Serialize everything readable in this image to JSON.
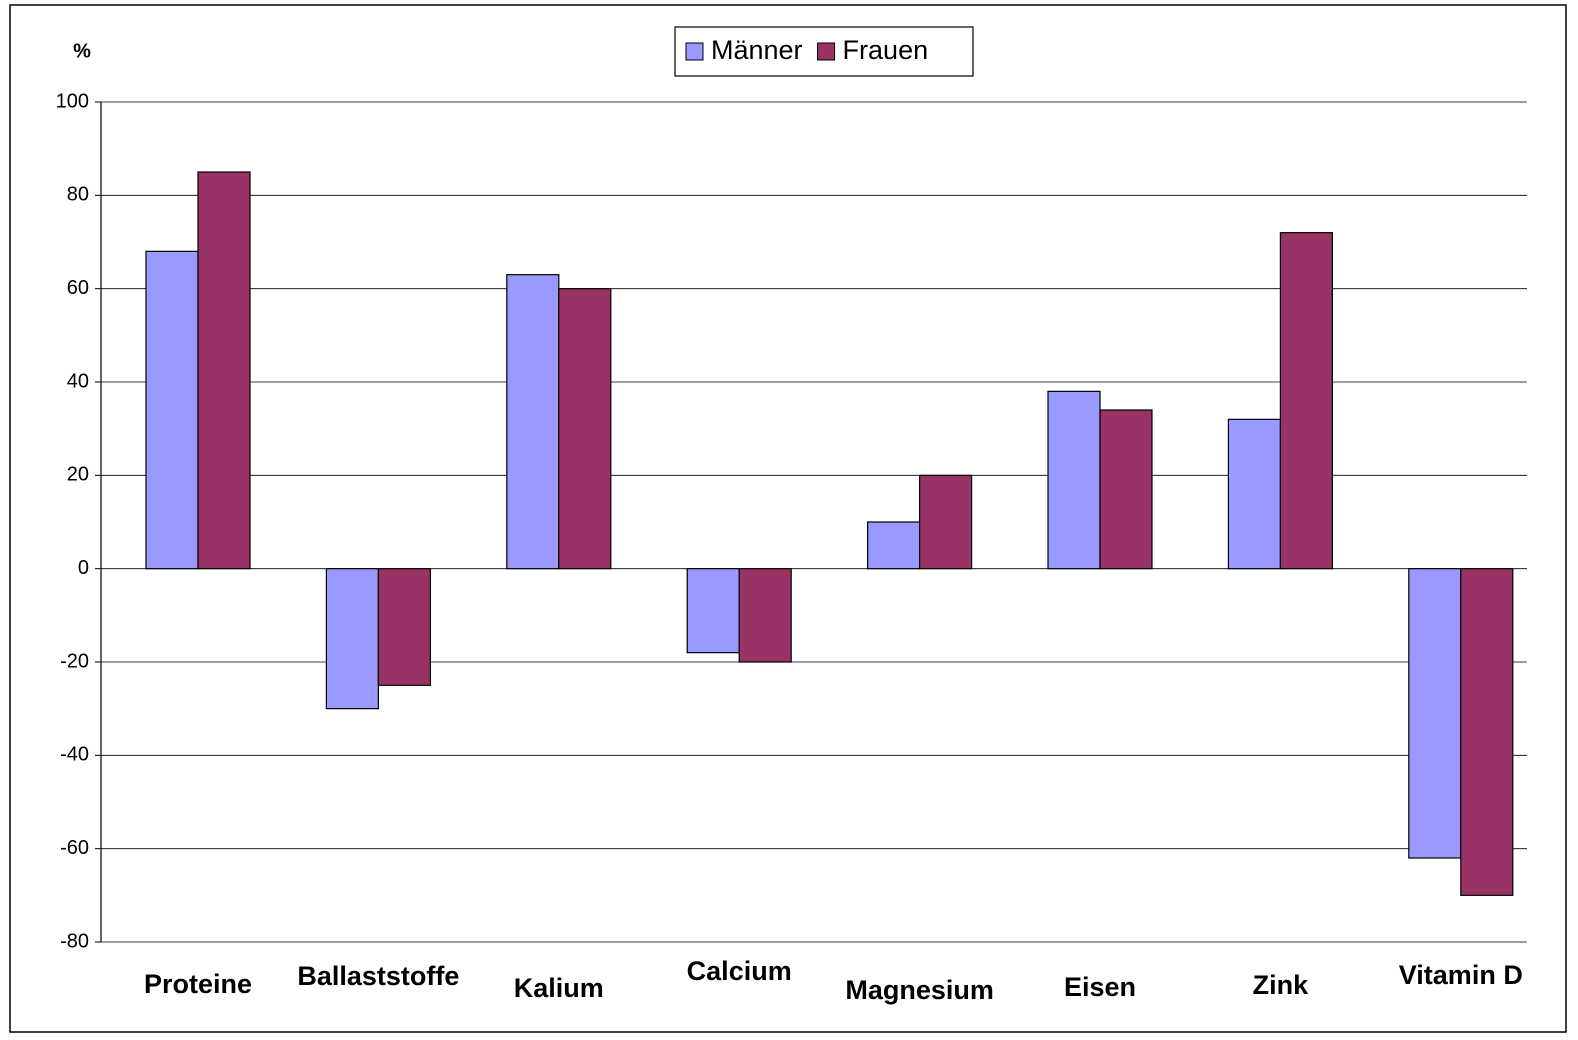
{
  "chart_data": {
    "type": "bar",
    "y_label": "%",
    "categories": [
      "Proteine",
      "Ballaststoffe",
      "Kalium",
      "Calcium",
      "Magnesium",
      "Eisen",
      "Zink",
      "Vitamin D"
    ],
    "series": [
      {
        "name": "Männer",
        "color": "#9999ff",
        "values": [
          68,
          -30,
          63,
          -18,
          10,
          38,
          32,
          -62
        ]
      },
      {
        "name": "Frauen",
        "color": "#993366",
        "values": [
          85,
          -25,
          60,
          -20,
          20,
          34,
          72,
          -70
        ]
      }
    ],
    "ylim": [
      -80,
      100
    ],
    "yticks": [
      -80,
      -60,
      -40,
      -20,
      0,
      20,
      40,
      60,
      80,
      100
    ],
    "grid": true,
    "legend": "top"
  }
}
